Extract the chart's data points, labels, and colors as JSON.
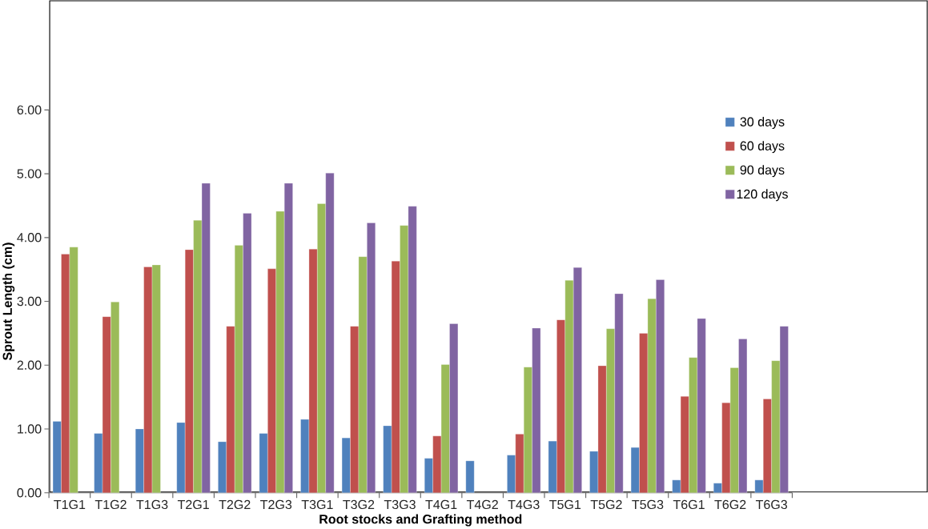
{
  "chart_data": {
    "type": "bar",
    "xlabel": "Root stocks and Grafting method",
    "ylabel": "Sprout Length (cm)",
    "categories": [
      "T1G1",
      "T1G2",
      "T1G3",
      "T2G1",
      "T2G2",
      "T2G3",
      "T3G1",
      "T3G2",
      "T3G3",
      "T4G1",
      "T4G2",
      "T4G3",
      "T5G1",
      "T5G2",
      "T5G3",
      "T6G1",
      "T6G2",
      "T6G3"
    ],
    "series": [
      {
        "name": "30 days",
        "color": "#4f81bd",
        "values": [
          1.12,
          0.93,
          1.0,
          1.1,
          0.8,
          0.93,
          1.15,
          0.86,
          1.05,
          0.54,
          0.5,
          0.59,
          0.81,
          0.65,
          0.71,
          0.2,
          0.15,
          0.2
        ]
      },
      {
        "name": "60 days",
        "color": "#c0504d",
        "values": [
          3.74,
          2.76,
          3.54,
          3.81,
          2.61,
          3.51,
          3.82,
          2.61,
          3.63,
          0.89,
          null,
          0.92,
          2.71,
          1.99,
          2.5,
          1.51,
          1.41,
          1.47
        ]
      },
      {
        "name": "90 days",
        "color": "#9bbb59",
        "values": [
          3.85,
          2.99,
          3.57,
          4.27,
          3.88,
          4.41,
          4.53,
          3.7,
          4.19,
          2.01,
          null,
          1.97,
          3.33,
          2.57,
          3.04,
          2.12,
          1.96,
          2.07
        ]
      },
      {
        "name": "120 days",
        "color": "#8064a2",
        "values": [
          null,
          null,
          null,
          4.85,
          4.38,
          4.85,
          5.01,
          4.23,
          4.49,
          2.65,
          null,
          2.58,
          3.53,
          3.12,
          3.34,
          2.73,
          2.41,
          2.61
        ]
      }
    ],
    "ylim": [
      0,
      6
    ],
    "yticks": [
      {
        "value": 0,
        "label": "0.00"
      },
      {
        "value": 1,
        "label": "1.00"
      },
      {
        "value": 2,
        "label": "2.00"
      },
      {
        "value": 3,
        "label": "3.00"
      },
      {
        "value": 4,
        "label": "4.00"
      },
      {
        "value": 5,
        "label": "5.00"
      },
      {
        "value": 6,
        "label": "6.00"
      }
    ],
    "grid": false,
    "legend": "top right"
  }
}
